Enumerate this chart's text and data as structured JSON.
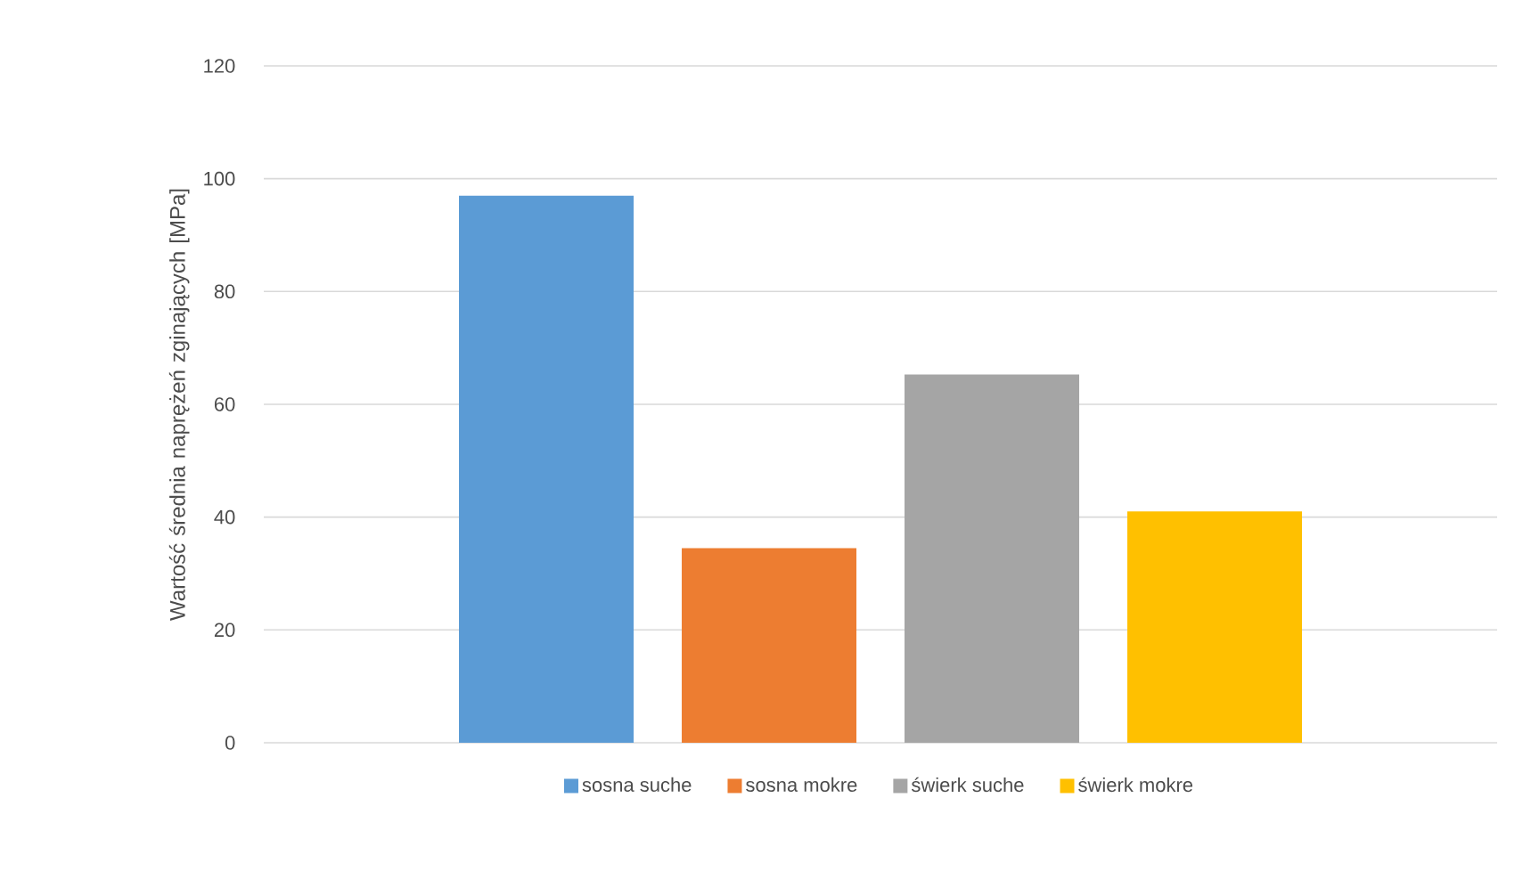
{
  "chart_data": {
    "type": "bar",
    "ylabel": "Wartość średnia naprężeń zginających [MPa]",
    "categories": [
      null
    ],
    "series": [
      {
        "name": "sosna suche",
        "color": "#5b9bd5",
        "values": [
          97
        ]
      },
      {
        "name": "sosna mokre",
        "color": "#ed7d31",
        "values": [
          34.5
        ]
      },
      {
        "name": "świerk suche",
        "color": "#a5a5a5",
        "values": [
          65.3
        ]
      },
      {
        "name": "świerk mokre",
        "color": "#ffc000",
        "values": [
          41
        ]
      }
    ],
    "ylim": [
      0,
      120
    ],
    "yticks": [
      0,
      20,
      40,
      60,
      80,
      100,
      120
    ],
    "grid": "y",
    "legend": "bottom"
  }
}
